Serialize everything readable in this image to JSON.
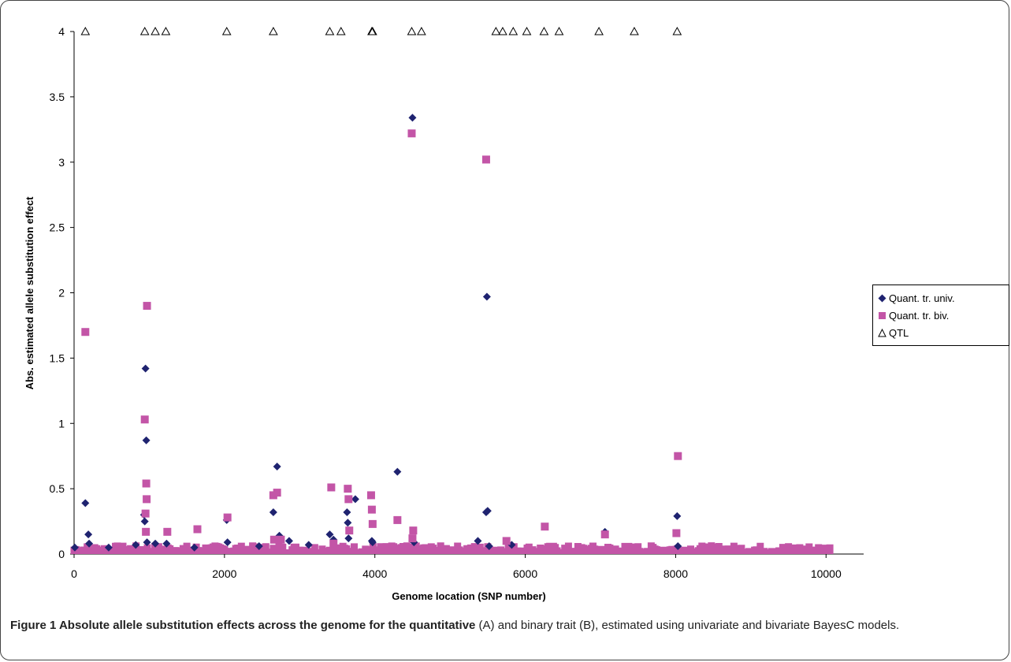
{
  "chart_data": {
    "type": "scatter",
    "xlabel": "Genome location (SNP number)",
    "ylabel": "Abs. estimated allele substitution effect",
    "xlim": [
      0,
      10500
    ],
    "ylim": [
      0,
      4
    ],
    "x_ticks": [
      "0",
      "2000",
      "4000",
      "6000",
      "8000",
      "10000"
    ],
    "x_tick_values": [
      0,
      2000,
      4000,
      6000,
      8000,
      10000
    ],
    "y_ticks": [
      "0",
      "0.5",
      "1",
      "1.5",
      "2",
      "2.5",
      "3",
      "3.5",
      "4"
    ],
    "y_tick_values": [
      0,
      0.5,
      1,
      1.5,
      2,
      2.5,
      3,
      3.5,
      4
    ],
    "grid": false,
    "legend_position": "right",
    "series": [
      {
        "name": "Quant. tr. univ.",
        "marker": "diamond",
        "color": "#1f2370",
        "points": [
          [
            10,
            0.05
          ],
          [
            150,
            0.39
          ],
          [
            190,
            0.15
          ],
          [
            200,
            0.08
          ],
          [
            460,
            0.05
          ],
          [
            820,
            0.07
          ],
          [
            930,
            0.3
          ],
          [
            940,
            0.25
          ],
          [
            950,
            1.42
          ],
          [
            960,
            0.87
          ],
          [
            970,
            0.09
          ],
          [
            1080,
            0.08
          ],
          [
            1230,
            0.08
          ],
          [
            1600,
            0.05
          ],
          [
            2030,
            0.26
          ],
          [
            2040,
            0.09
          ],
          [
            2460,
            0.06
          ],
          [
            2650,
            0.32
          ],
          [
            2700,
            0.67
          ],
          [
            2730,
            0.14
          ],
          [
            2860,
            0.1
          ],
          [
            3120,
            0.07
          ],
          [
            3400,
            0.15
          ],
          [
            3450,
            0.11
          ],
          [
            3630,
            0.32
          ],
          [
            3640,
            0.24
          ],
          [
            3650,
            0.12
          ],
          [
            3740,
            0.42
          ],
          [
            3960,
            0.1
          ],
          [
            3970,
            0.09
          ],
          [
            4300,
            0.63
          ],
          [
            4500,
            3.34
          ],
          [
            4520,
            0.09
          ],
          [
            5370,
            0.1
          ],
          [
            5480,
            0.32
          ],
          [
            5490,
            1.97
          ],
          [
            5500,
            0.33
          ],
          [
            5520,
            0.06
          ],
          [
            5820,
            0.07
          ],
          [
            7060,
            0.17
          ],
          [
            8020,
            0.29
          ],
          [
            8030,
            0.06
          ]
        ]
      },
      {
        "name": "Quant. tr. biv.",
        "marker": "square",
        "color": "#c355a7",
        "points": [
          [
            150,
            1.7
          ],
          [
            940,
            1.03
          ],
          [
            950,
            0.31
          ],
          [
            955,
            0.17
          ],
          [
            960,
            0.54
          ],
          [
            965,
            0.42
          ],
          [
            970,
            1.9
          ],
          [
            1240,
            0.17
          ],
          [
            1640,
            0.19
          ],
          [
            2040,
            0.28
          ],
          [
            2650,
            0.45
          ],
          [
            2700,
            0.47
          ],
          [
            2750,
            0.11
          ],
          [
            3420,
            0.51
          ],
          [
            3640,
            0.5
          ],
          [
            3650,
            0.42
          ],
          [
            3660,
            0.18
          ],
          [
            3950,
            0.45
          ],
          [
            3960,
            0.34
          ],
          [
            3970,
            0.23
          ],
          [
            4300,
            0.26
          ],
          [
            4490,
            3.22
          ],
          [
            4510,
            0.18
          ],
          [
            4500,
            0.12
          ],
          [
            5480,
            3.02
          ],
          [
            5750,
            0.1
          ],
          [
            6260,
            0.21
          ],
          [
            7060,
            0.15
          ],
          [
            8010,
            0.16
          ],
          [
            8030,
            0.75
          ],
          [
            2660,
            0.11
          ],
          [
            3450,
            0.08
          ]
        ]
      },
      {
        "name": "QTL",
        "marker": "triangle",
        "color": "#000000",
        "points": [
          [
            150,
            4
          ],
          [
            940,
            4
          ],
          [
            1080,
            4
          ],
          [
            1220,
            4
          ],
          [
            2030,
            4
          ],
          [
            2650,
            4
          ],
          [
            3400,
            4
          ],
          [
            3550,
            4
          ],
          [
            3960,
            4
          ],
          [
            3970,
            4
          ],
          [
            4490,
            4
          ],
          [
            4620,
            4
          ],
          [
            5610,
            4
          ],
          [
            5700,
            4
          ],
          [
            5840,
            4
          ],
          [
            6020,
            4
          ],
          [
            6250,
            4
          ],
          [
            6450,
            4
          ],
          [
            6980,
            4
          ],
          [
            7450,
            4
          ],
          [
            8020,
            4
          ]
        ]
      }
    ],
    "background_band": {
      "max_value": 0.09,
      "x_range": [
        0,
        10050
      ]
    }
  },
  "caption": {
    "bold": "Figure 1 Absolute allele substitution effects across the genome for the quantitative",
    "normal": " (A) and binary trait (B), estimated using univariate and bivariate BayesC models."
  },
  "colors": {
    "univ": "#1f2370",
    "biv": "#c355a7",
    "axis": "#000000"
  }
}
